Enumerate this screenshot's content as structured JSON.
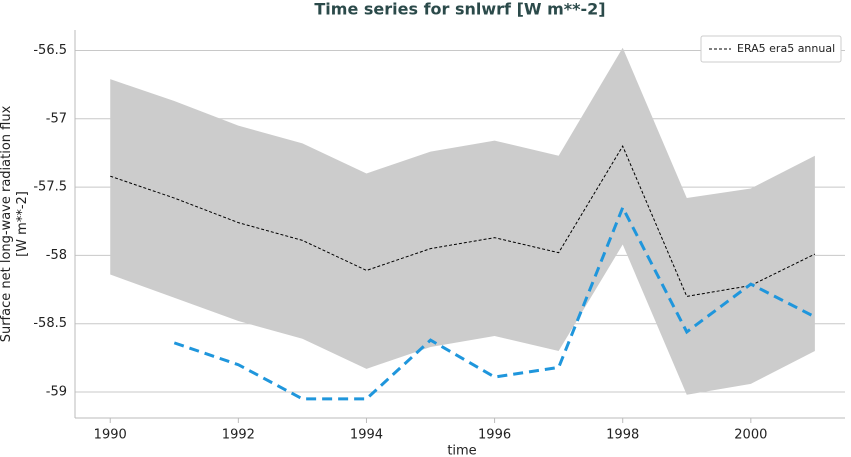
{
  "chart_data": {
    "type": "line",
    "title": "Time series for snlwrf [W m**-2]",
    "xlabel": "time",
    "ylabel": "Surface net long-wave radiation flux [W m**-2]",
    "x": [
      1990,
      1991,
      1992,
      1993,
      1994,
      1995,
      1996,
      1997,
      1998,
      1999,
      2000,
      2001
    ],
    "band": {
      "color": "#cccccc",
      "upper": [
        -56.71,
        -56.87,
        -57.05,
        -57.18,
        -57.4,
        -57.24,
        -57.16,
        -57.27,
        -56.48,
        -57.58,
        -57.51,
        -57.27
      ],
      "lower": [
        -58.14,
        -58.31,
        -58.48,
        -58.61,
        -58.83,
        -58.67,
        -58.59,
        -58.7,
        -57.92,
        -59.02,
        -58.94,
        -58.7
      ]
    },
    "series": [
      {
        "name": "ERA5 era5 annual",
        "color": "#000000",
        "dash": "3,2",
        "width": 1,
        "values": [
          -57.42,
          -57.58,
          -57.76,
          -57.89,
          -58.11,
          -57.95,
          -57.87,
          -57.98,
          -57.2,
          -58.3,
          -58.22,
          -57.99
        ]
      },
      {
        "color": "#1f96dc",
        "dash": "10,6",
        "width": 3,
        "values": [
          null,
          -58.64,
          -58.8,
          -59.05,
          -59.05,
          -58.62,
          -58.89,
          -58.82,
          -57.65,
          -58.56,
          -58.21,
          -58.45
        ]
      }
    ],
    "xlim": [
      1989.45,
      2001.47
    ],
    "xticks": [
      1990,
      1992,
      1994,
      1996,
      1998,
      2000
    ],
    "ylim": [
      -59.19,
      -56.35
    ],
    "yticks": [
      -56.5,
      -57.0,
      -57.5,
      -58.0,
      -58.5,
      -59.0
    ],
    "grid": true,
    "legend": "upper right"
  }
}
